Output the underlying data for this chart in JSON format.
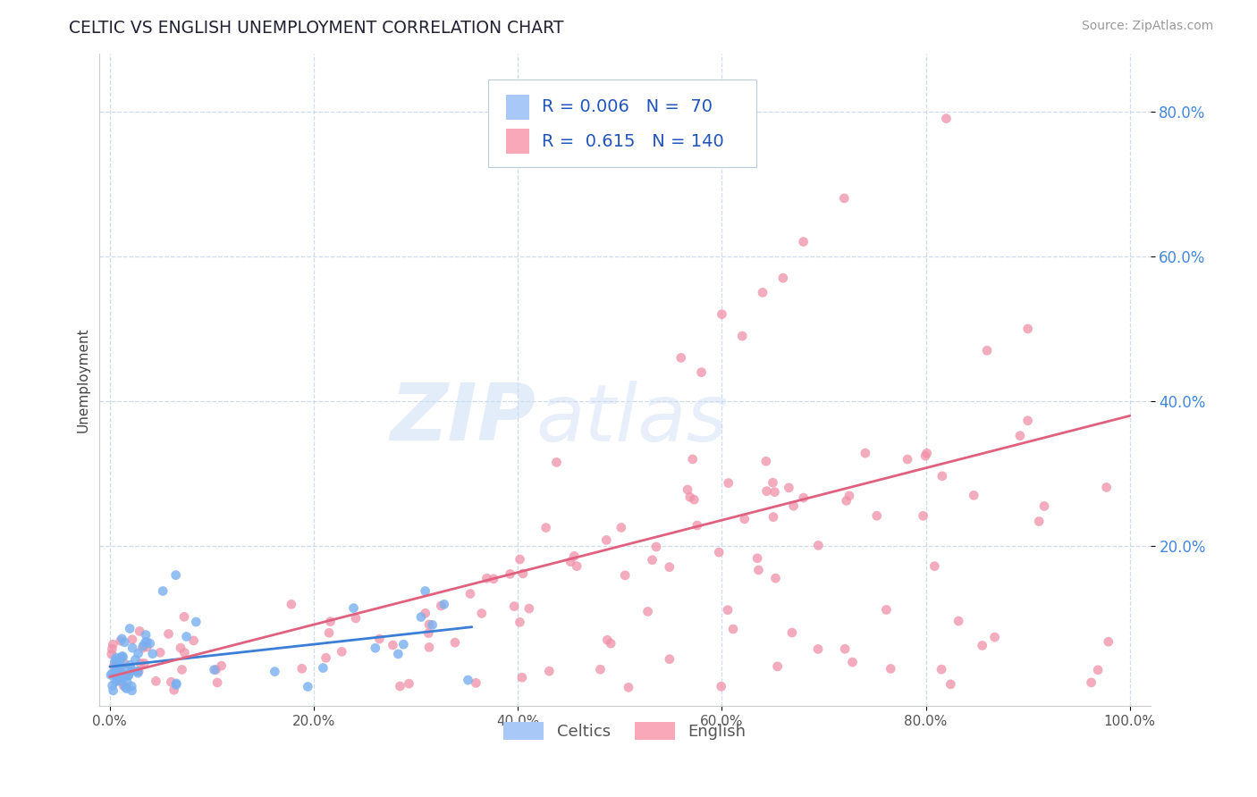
{
  "title": "CELTIC VS ENGLISH UNEMPLOYMENT CORRELATION CHART",
  "source_text": "Source: ZipAtlas.com",
  "ylabel": "Unemployment",
  "xlim": [
    -0.01,
    1.02
  ],
  "ylim": [
    -0.02,
    0.88
  ],
  "xtick_labels": [
    "0.0%",
    "20.0%",
    "40.0%",
    "60.0%",
    "80.0%",
    "100.0%"
  ],
  "xtick_positions": [
    0.0,
    0.2,
    0.4,
    0.6,
    0.8,
    1.0
  ],
  "ytick_labels": [
    "20.0%",
    "40.0%",
    "60.0%",
    "80.0%"
  ],
  "ytick_positions": [
    0.2,
    0.4,
    0.6,
    0.8
  ],
  "grid_color": "#c8d8e8",
  "background_color": "#ffffff",
  "celtics_color": "#a8c8f8",
  "english_color": "#f8a8b8",
  "celtics_line_color": "#3a7fd5",
  "english_line_color": "#e06080",
  "celtics_marker_color": "#7ab0f0",
  "english_marker_color": "#f090a8",
  "legend_r_celtics": "0.006",
  "legend_n_celtics": "70",
  "legend_r_english": "0.615",
  "legend_n_english": "140",
  "watermark_zip": "ZIP",
  "watermark_atlas": "atlas",
  "ytick_color": "#4488dd",
  "xtick_color": "#555555",
  "title_color": "#222233",
  "source_color": "#999999",
  "ylabel_color": "#444444"
}
